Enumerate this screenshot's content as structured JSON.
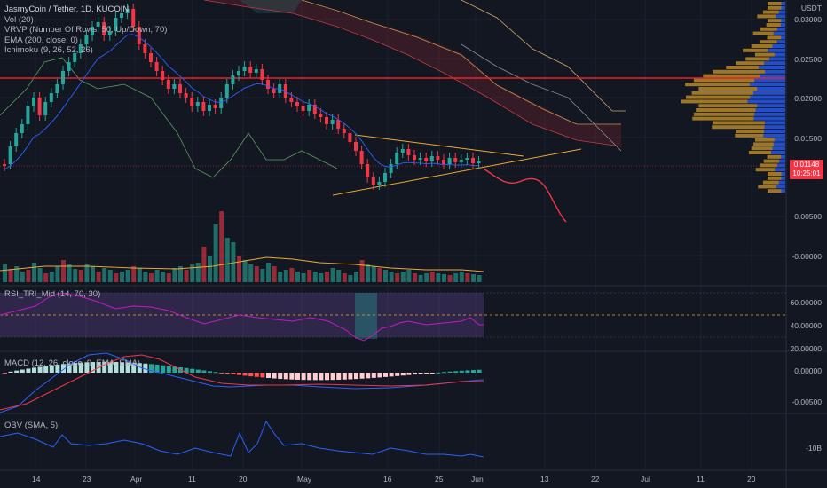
{
  "header": {
    "symbol_line": "JasmyCoin / Tether, 1D, KUCOIN",
    "indicators": [
      "Vol (20)",
      "VRVP (Number Of Rows, 50, Up/Down, 70)",
      "EMA (200, close, 0)",
      "Ichimoku (9, 26, 52, 26)"
    ],
    "currency": "USDT"
  },
  "price_axis": {
    "labels": [
      "0.03000",
      "0.02500",
      "0.02000",
      "0.01500",
      "0.00500",
      "-0.00000"
    ],
    "last_price": "0.01148",
    "countdown": "10:25:01"
  },
  "rsi": {
    "label": "RSI_TRI_Mid (14, 70, 30)",
    "axis": [
      "60.00000",
      "40.00000",
      "20.00000"
    ]
  },
  "macd": {
    "label": "MACD (12, 26, close, 9, EMA, EMA)",
    "axis": [
      "0.00000",
      "-0.00500"
    ]
  },
  "obv": {
    "label": "OBV (SMA, 5)",
    "axis": [
      "-10B"
    ]
  },
  "time_axis": [
    "14",
    "23",
    "Apr",
    "11",
    "20",
    "May",
    "16",
    "25",
    "Jun",
    "13",
    "22",
    "Jul",
    "11",
    "20"
  ],
  "colors": {
    "background": "#131722",
    "up": "#26a69a",
    "down": "#f23645",
    "hline": "#e5222b",
    "trend": "#f0a830",
    "obv": "#2962ff",
    "rsi": "#c21ac2"
  }
}
